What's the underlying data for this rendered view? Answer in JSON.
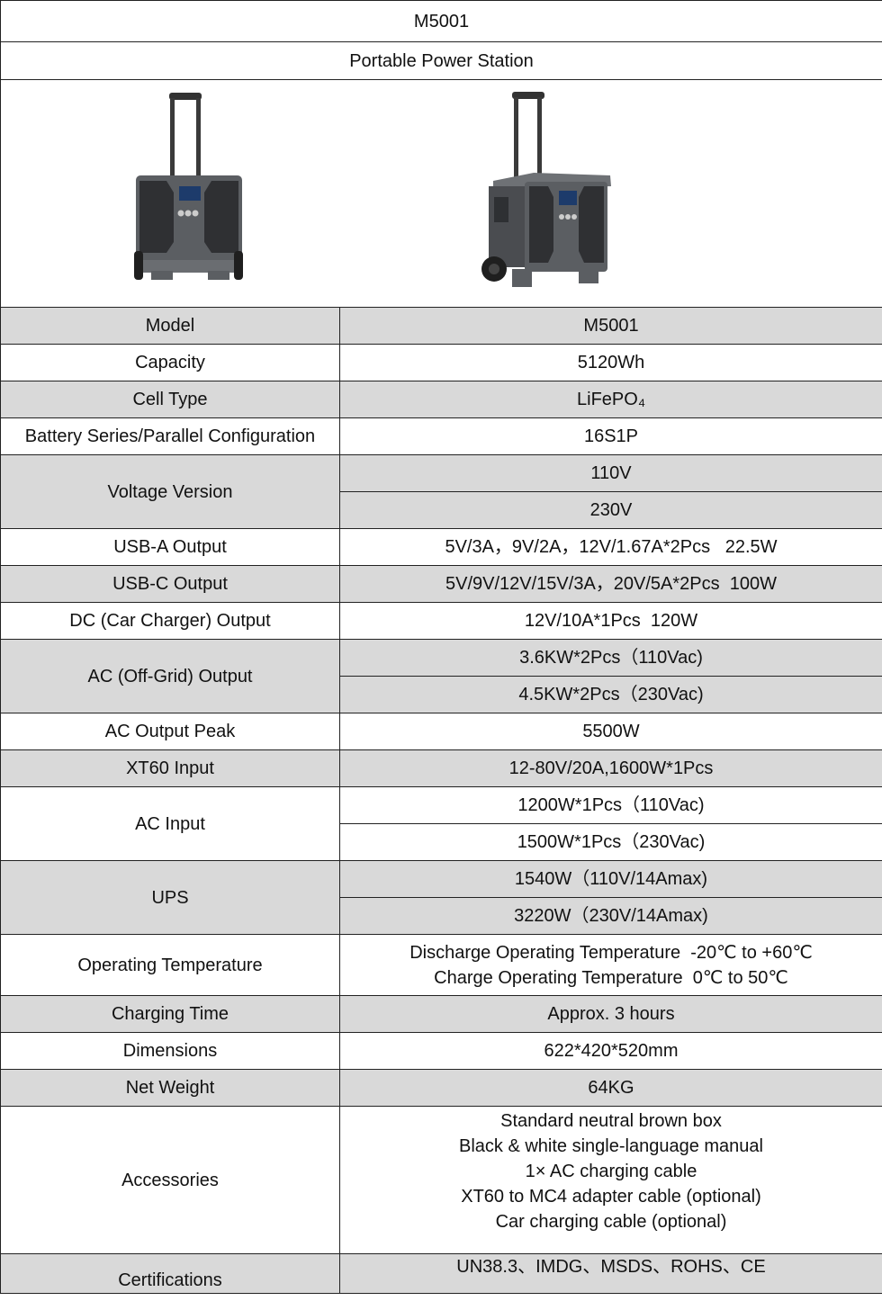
{
  "header": {
    "title": "M5001",
    "subtitle": "Portable Power Station"
  },
  "images": [
    {
      "name": "power-station-front-view"
    },
    {
      "name": "power-station-angled-view"
    }
  ],
  "specs": [
    {
      "label": "Model",
      "values": [
        "M5001"
      ]
    },
    {
      "label": "Capacity",
      "values": [
        "5120Wh"
      ]
    },
    {
      "label": "Cell Type",
      "values": [
        "LiFePO₄"
      ]
    },
    {
      "label": "Battery Series/Parallel Configuration",
      "values": [
        "16S1P"
      ]
    },
    {
      "label": "Voltage Version",
      "values": [
        "110V",
        "230V"
      ]
    },
    {
      "label": "USB-A Output",
      "values": [
        "5V/3A，9V/2A，12V/1.67A*2Pcs   22.5W"
      ]
    },
    {
      "label": "USB-C Output",
      "values": [
        "5V/9V/12V/15V/3A，20V/5A*2Pcs  100W"
      ]
    },
    {
      "label": "DC (Car Charger) Output",
      "values": [
        "12V/10A*1Pcs  120W"
      ]
    },
    {
      "label": "AC (Off-Grid) Output",
      "values": [
        "3.6KW*2Pcs（110Vac)",
        "4.5KW*2Pcs（230Vac)"
      ]
    },
    {
      "label": "AC Output Peak",
      "values": [
        "5500W"
      ]
    },
    {
      "label": "XT60 Input",
      "values": [
        "12-80V/20A,1600W*1Pcs"
      ]
    },
    {
      "label": "AC Input",
      "values": [
        "1200W*1Pcs（110Vac)",
        "1500W*1Pcs（230Vac)"
      ]
    },
    {
      "label": "UPS",
      "values": [
        "1540W（110V/14Amax)",
        "3220W（230V/14Amax)"
      ]
    },
    {
      "label": "Operating Temperature",
      "lines": [
        "Discharge Operating Temperature  -20℃ to +60℃",
        "Charge Operating Temperature  0℃ to 50℃"
      ]
    },
    {
      "label": "Charging Time",
      "values": [
        "Approx. 3 hours"
      ]
    },
    {
      "label": "Dimensions",
      "values": [
        "622*420*520mm"
      ]
    },
    {
      "label": "Net Weight",
      "values": [
        "64KG"
      ]
    },
    {
      "label": "Accessories",
      "lines": [
        "Standard neutral brown box",
        "Black & white single-language manual",
        "1× AC charging cable",
        "XT60 to MC4 adapter cable (optional)",
        "Car charging cable (optional)"
      ]
    },
    {
      "label": "Certifications",
      "values": [
        "UN38.3、IMDG、MSDS、ROHS、CE"
      ]
    }
  ],
  "colors": {
    "shaded_row": "#d9d9d9",
    "border": "#222222",
    "marker": "#2e8b2e"
  }
}
